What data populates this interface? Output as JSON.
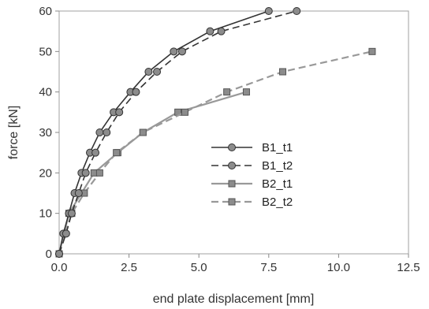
{
  "chart_data": {
    "type": "line",
    "title": "",
    "xlabel": "end plate displacement [mm]",
    "ylabel": "force [kN]",
    "xlim": [
      0,
      12.5
    ],
    "ylim": [
      0,
      60
    ],
    "xticks": [
      "0.0",
      "2.5",
      "5.0",
      "7.5",
      "10.0",
      "12.5"
    ],
    "yticks": [
      "0",
      "10",
      "20",
      "30",
      "40",
      "50",
      "60"
    ],
    "grid": false,
    "legend_position": "center-right",
    "series": [
      {
        "name": "B1_t1",
        "marker": "circle",
        "line_style": "solid",
        "color": "#333333",
        "x": [
          0,
          0.15,
          0.35,
          0.55,
          0.8,
          1.1,
          1.45,
          1.95,
          2.55,
          3.2,
          4.1,
          5.4,
          7.5
        ],
        "y": [
          0,
          5,
          10,
          15,
          20,
          25,
          30,
          35,
          40,
          45,
          50,
          55,
          60
        ]
      },
      {
        "name": "B1_t2",
        "marker": "circle",
        "line_style": "dashed",
        "color": "#333333",
        "x": [
          0,
          0.25,
          0.45,
          0.7,
          0.95,
          1.3,
          1.7,
          2.15,
          2.75,
          3.5,
          4.4,
          5.8,
          8.5
        ],
        "y": [
          0,
          5,
          10,
          15,
          20,
          25,
          30,
          35,
          40,
          45,
          50,
          55,
          60
        ]
      },
      {
        "name": "B2_t1",
        "marker": "square",
        "line_style": "solid",
        "color": "#999999",
        "x": [
          0,
          0.35,
          0.8,
          1.25,
          2.1,
          3.0,
          4.25,
          6.7
        ],
        "y": [
          0,
          10,
          15,
          20,
          25,
          30,
          35,
          40
        ]
      },
      {
        "name": "B2_t2",
        "marker": "square",
        "line_style": "dashed",
        "color": "#999999",
        "x": [
          0,
          0.45,
          0.9,
          1.45,
          2.05,
          3.0,
          4.5,
          6.0,
          8.0,
          11.2
        ],
        "y": [
          0,
          10,
          15,
          20,
          25,
          30,
          35,
          40,
          45,
          50
        ]
      }
    ]
  }
}
